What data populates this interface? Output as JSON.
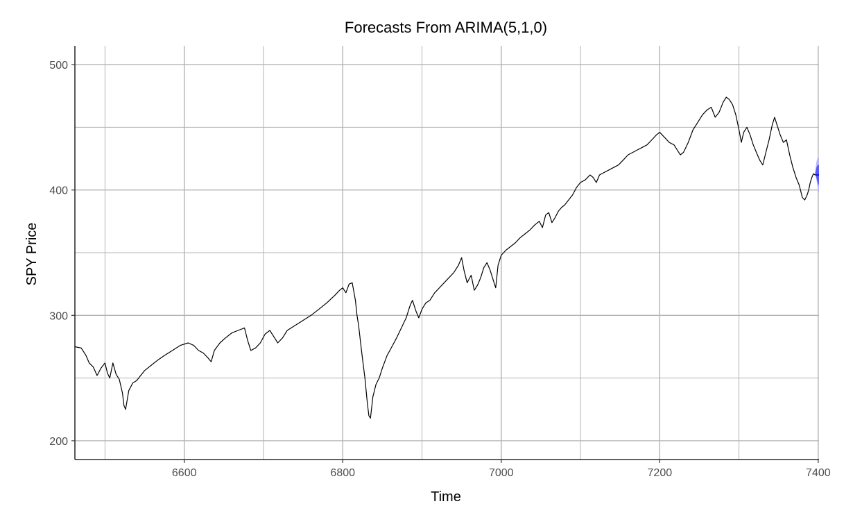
{
  "chart_data": {
    "type": "line",
    "title": "Forecasts From ARIMA(5,1,0)",
    "xlabel": "Time",
    "ylabel": "SPY Price",
    "xlim": [
      6462,
      7401
    ],
    "ylim": [
      185,
      515
    ],
    "x_ticks": [
      6600,
      6800,
      7000,
      7200,
      7400
    ],
    "y_ticks": [
      200,
      300,
      400,
      500
    ],
    "x_tick_labels": [
      "6600",
      "6800",
      "7000",
      "7200",
      "7400"
    ],
    "y_tick_labels": [
      "200",
      "300",
      "400",
      "500"
    ],
    "grid": true,
    "legend": "none",
    "series": [
      {
        "values": [
          [
            6462,
            275
          ],
          [
            6470,
            274
          ],
          [
            6476,
            268
          ],
          [
            6480,
            262
          ],
          [
            6485,
            259
          ],
          [
            6490,
            252
          ],
          [
            6495,
            258
          ],
          [
            6500,
            262
          ],
          [
            6503,
            254
          ],
          [
            6506,
            250
          ],
          [
            6510,
            262
          ],
          [
            6514,
            253
          ],
          [
            6518,
            249
          ],
          [
            6522,
            238
          ],
          [
            6524,
            228
          ],
          [
            6526,
            225
          ],
          [
            6530,
            240
          ],
          [
            6535,
            246
          ],
          [
            6540,
            248
          ],
          [
            6545,
            252
          ],
          [
            6550,
            256
          ],
          [
            6558,
            260
          ],
          [
            6566,
            264
          ],
          [
            6575,
            268
          ],
          [
            6585,
            272
          ],
          [
            6595,
            276
          ],
          [
            6605,
            278
          ],
          [
            6612,
            276
          ],
          [
            6618,
            272
          ],
          [
            6624,
            270
          ],
          [
            6630,
            266
          ],
          [
            6634,
            263
          ],
          [
            6638,
            272
          ],
          [
            6645,
            278
          ],
          [
            6652,
            282
          ],
          [
            6660,
            286
          ],
          [
            6668,
            288
          ],
          [
            6676,
            290
          ],
          [
            6680,
            280
          ],
          [
            6684,
            272
          ],
          [
            6690,
            274
          ],
          [
            6696,
            278
          ],
          [
            6702,
            285
          ],
          [
            6708,
            288
          ],
          [
            6714,
            282
          ],
          [
            6718,
            278
          ],
          [
            6724,
            282
          ],
          [
            6730,
            288
          ],
          [
            6740,
            292
          ],
          [
            6750,
            296
          ],
          [
            6760,
            300
          ],
          [
            6770,
            305
          ],
          [
            6780,
            310
          ],
          [
            6790,
            316
          ],
          [
            6796,
            320
          ],
          [
            6800,
            322
          ],
          [
            6804,
            318
          ],
          [
            6808,
            325
          ],
          [
            6812,
            326
          ],
          [
            6816,
            312
          ],
          [
            6818,
            300
          ],
          [
            6820,
            292
          ],
          [
            6824,
            270
          ],
          [
            6828,
            250
          ],
          [
            6831,
            230
          ],
          [
            6833,
            220
          ],
          [
            6835,
            218
          ],
          [
            6838,
            235
          ],
          [
            6842,
            245
          ],
          [
            6846,
            250
          ],
          [
            6850,
            258
          ],
          [
            6856,
            268
          ],
          [
            6862,
            275
          ],
          [
            6868,
            282
          ],
          [
            6874,
            290
          ],
          [
            6880,
            298
          ],
          [
            6885,
            308
          ],
          [
            6888,
            312
          ],
          [
            6892,
            304
          ],
          [
            6896,
            298
          ],
          [
            6900,
            305
          ],
          [
            6905,
            310
          ],
          [
            6910,
            312
          ],
          [
            6916,
            318
          ],
          [
            6922,
            322
          ],
          [
            6928,
            326
          ],
          [
            6934,
            330
          ],
          [
            6940,
            334
          ],
          [
            6946,
            340
          ],
          [
            6950,
            346
          ],
          [
            6953,
            336
          ],
          [
            6957,
            326
          ],
          [
            6962,
            332
          ],
          [
            6966,
            320
          ],
          [
            6970,
            324
          ],
          [
            6974,
            330
          ],
          [
            6978,
            338
          ],
          [
            6982,
            342
          ],
          [
            6986,
            336
          ],
          [
            6990,
            328
          ],
          [
            6993,
            322
          ],
          [
            6996,
            340
          ],
          [
            7000,
            348
          ],
          [
            7006,
            352
          ],
          [
            7012,
            355
          ],
          [
            7018,
            358
          ],
          [
            7024,
            362
          ],
          [
            7030,
            365
          ],
          [
            7036,
            368
          ],
          [
            7042,
            372
          ],
          [
            7048,
            375
          ],
          [
            7052,
            370
          ],
          [
            7056,
            380
          ],
          [
            7060,
            382
          ],
          [
            7064,
            374
          ],
          [
            7068,
            378
          ],
          [
            7072,
            383
          ],
          [
            7076,
            386
          ],
          [
            7080,
            388
          ],
          [
            7085,
            392
          ],
          [
            7090,
            396
          ],
          [
            7095,
            402
          ],
          [
            7100,
            406
          ],
          [
            7106,
            408
          ],
          [
            7112,
            412
          ],
          [
            7116,
            410
          ],
          [
            7120,
            406
          ],
          [
            7124,
            412
          ],
          [
            7130,
            414
          ],
          [
            7136,
            416
          ],
          [
            7142,
            418
          ],
          [
            7148,
            420
          ],
          [
            7154,
            424
          ],
          [
            7160,
            428
          ],
          [
            7166,
            430
          ],
          [
            7172,
            432
          ],
          [
            7178,
            434
          ],
          [
            7184,
            436
          ],
          [
            7190,
            440
          ],
          [
            7196,
            444
          ],
          [
            7200,
            446
          ],
          [
            7206,
            442
          ],
          [
            7212,
            438
          ],
          [
            7218,
            436
          ],
          [
            7222,
            432
          ],
          [
            7226,
            428
          ],
          [
            7230,
            430
          ],
          [
            7236,
            438
          ],
          [
            7242,
            448
          ],
          [
            7248,
            454
          ],
          [
            7254,
            460
          ],
          [
            7260,
            464
          ],
          [
            7265,
            466
          ],
          [
            7270,
            458
          ],
          [
            7275,
            462
          ],
          [
            7280,
            470
          ],
          [
            7284,
            474
          ],
          [
            7288,
            472
          ],
          [
            7292,
            468
          ],
          [
            7296,
            460
          ],
          [
            7300,
            448
          ],
          [
            7303,
            438
          ],
          [
            7306,
            446
          ],
          [
            7310,
            450
          ],
          [
            7314,
            444
          ],
          [
            7318,
            436
          ],
          [
            7322,
            430
          ],
          [
            7326,
            424
          ],
          [
            7330,
            420
          ],
          [
            7334,
            430
          ],
          [
            7338,
            440
          ],
          [
            7342,
            452
          ],
          [
            7345,
            458
          ],
          [
            7348,
            452
          ],
          [
            7352,
            444
          ],
          [
            7356,
            438
          ],
          [
            7360,
            440
          ],
          [
            7364,
            428
          ],
          [
            7368,
            418
          ],
          [
            7372,
            410
          ],
          [
            7376,
            404
          ],
          [
            7380,
            394
          ],
          [
            7383,
            392
          ],
          [
            7386,
            396
          ],
          [
            7388,
            400
          ],
          [
            7390,
            406
          ],
          [
            7392,
            410
          ],
          [
            7394,
            413
          ],
          [
            7396,
            412
          ]
        ]
      },
      {
        "name_hidden": "forecast",
        "values": [
          [
            7396,
            412
          ],
          [
            7398,
            412
          ],
          [
            7400,
            412
          ],
          [
            7401,
            412
          ]
        ]
      }
    ],
    "forecast": {
      "start": 7396,
      "end": 7401,
      "mean": 412,
      "pi80_halfwidth": [
        0,
        8
      ],
      "pi95_halfwidth": [
        0,
        14
      ]
    },
    "colors": {
      "line": "#000000",
      "forecast_line": "#0000ff",
      "pi80": "#5b5bf0",
      "pi95": "#b8b8f7"
    }
  }
}
